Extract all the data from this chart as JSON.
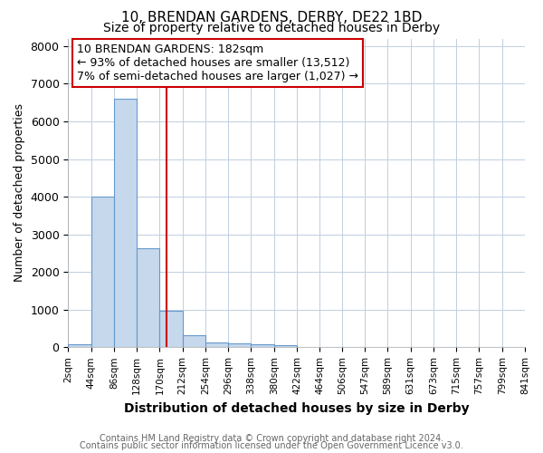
{
  "title": "10, BRENDAN GARDENS, DERBY, DE22 1BD",
  "subtitle": "Size of property relative to detached houses in Derby",
  "xlabel": "Distribution of detached houses by size in Derby",
  "ylabel": "Number of detached properties",
  "footnote1": "Contains HM Land Registry data © Crown copyright and database right 2024.",
  "footnote2": "Contains public sector information licensed under the Open Government Licence v3.0.",
  "annotation_line1": "10 BRENDAN GARDENS: 182sqm",
  "annotation_line2": "← 93% of detached houses are smaller (13,512)",
  "annotation_line3": "7% of semi-detached houses are larger (1,027) →",
  "bar_edges": [
    2,
    44,
    86,
    128,
    170,
    212,
    254,
    296,
    338,
    380,
    422,
    464,
    506,
    547,
    589,
    631,
    673,
    715,
    757,
    799,
    841
  ],
  "bar_heights": [
    75,
    4000,
    6600,
    2620,
    960,
    320,
    135,
    95,
    70,
    55,
    0,
    0,
    0,
    0,
    0,
    0,
    0,
    0,
    0,
    0
  ],
  "property_size": 182,
  "bar_color": "#c6d8ec",
  "bar_edge_color": "#6699cc",
  "vline_color": "#cc0000",
  "bg_color": "#ffffff",
  "plot_bg_color": "#ffffff",
  "grid_color": "#c0cfe0",
  "annotation_box_edge_color": "#cc0000",
  "annotation_box_face_color": "#ffffff",
  "ylim": [
    0,
    8200
  ],
  "yticks": [
    0,
    1000,
    2000,
    3000,
    4000,
    5000,
    6000,
    7000,
    8000
  ],
  "tick_labels": [
    "2sqm",
    "44sqm",
    "86sqm",
    "128sqm",
    "170sqm",
    "212sqm",
    "254sqm",
    "296sqm",
    "338sqm",
    "380sqm",
    "422sqm",
    "464sqm",
    "506sqm",
    "547sqm",
    "589sqm",
    "631sqm",
    "673sqm",
    "715sqm",
    "757sqm",
    "799sqm",
    "841sqm"
  ],
  "title_fontsize": 11,
  "subtitle_fontsize": 10,
  "xlabel_fontsize": 10,
  "ylabel_fontsize": 9,
  "footnote_fontsize": 7,
  "annotation_fontsize": 9
}
